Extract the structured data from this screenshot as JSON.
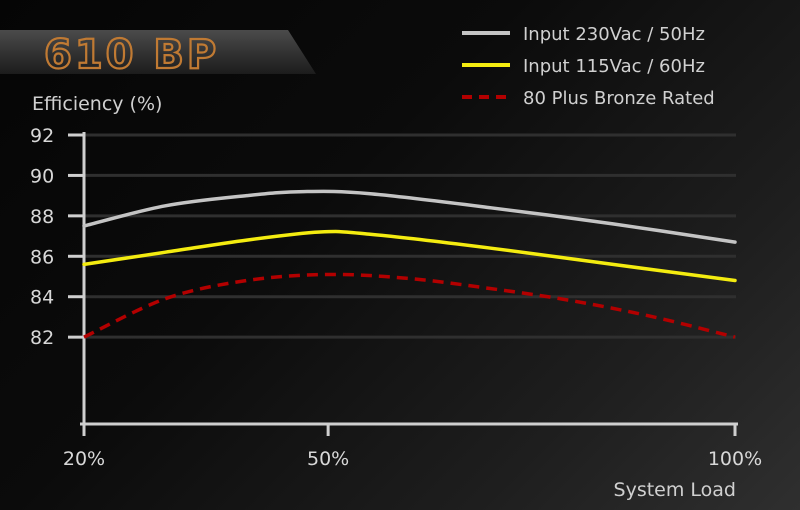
{
  "model": "610 BP",
  "colors": {
    "accent": "#c07a33",
    "input_230": "#c4c4c4",
    "input_115": "#f4ec10",
    "bronze": "#b30000",
    "text": "#d0d0d0"
  },
  "chart_data": {
    "type": "line",
    "ylabel": "Efficiency (%)",
    "xlabel": "System Load",
    "ylim": [
      78,
      92
    ],
    "xlim": [
      20,
      100
    ],
    "y_ticks": [
      92,
      90,
      88,
      86,
      84,
      82
    ],
    "x_ticks": [
      {
        "value": 20,
        "label": "20%"
      },
      {
        "value": 50,
        "label": "50%"
      },
      {
        "value": 100,
        "label": "100%"
      }
    ],
    "grid": true,
    "legend_position": "top-right",
    "series": [
      {
        "name": "Input 230Vac / 50Hz",
        "color": "#c4c4c4",
        "style": "solid",
        "x": [
          20,
          30,
          40,
          47,
          55,
          70,
          85,
          100
        ],
        "values": [
          87.5,
          88.5,
          89.0,
          89.2,
          89.1,
          88.4,
          87.6,
          86.7
        ]
      },
      {
        "name": "Input 115Vac / 60Hz",
        "color": "#f4ec10",
        "style": "solid",
        "x": [
          20,
          30,
          40,
          49,
          55,
          70,
          85,
          100
        ],
        "values": [
          85.6,
          86.2,
          86.8,
          87.2,
          87.1,
          86.4,
          85.6,
          84.8
        ]
      },
      {
        "name": "80 Plus Bronze Rated",
        "color": "#b30000",
        "style": "dashed",
        "x": [
          20,
          30,
          40,
          50,
          60,
          70,
          80,
          90,
          100
        ],
        "values": [
          82.0,
          83.9,
          84.8,
          85.1,
          84.9,
          84.4,
          83.8,
          83.0,
          82.0
        ]
      }
    ]
  }
}
